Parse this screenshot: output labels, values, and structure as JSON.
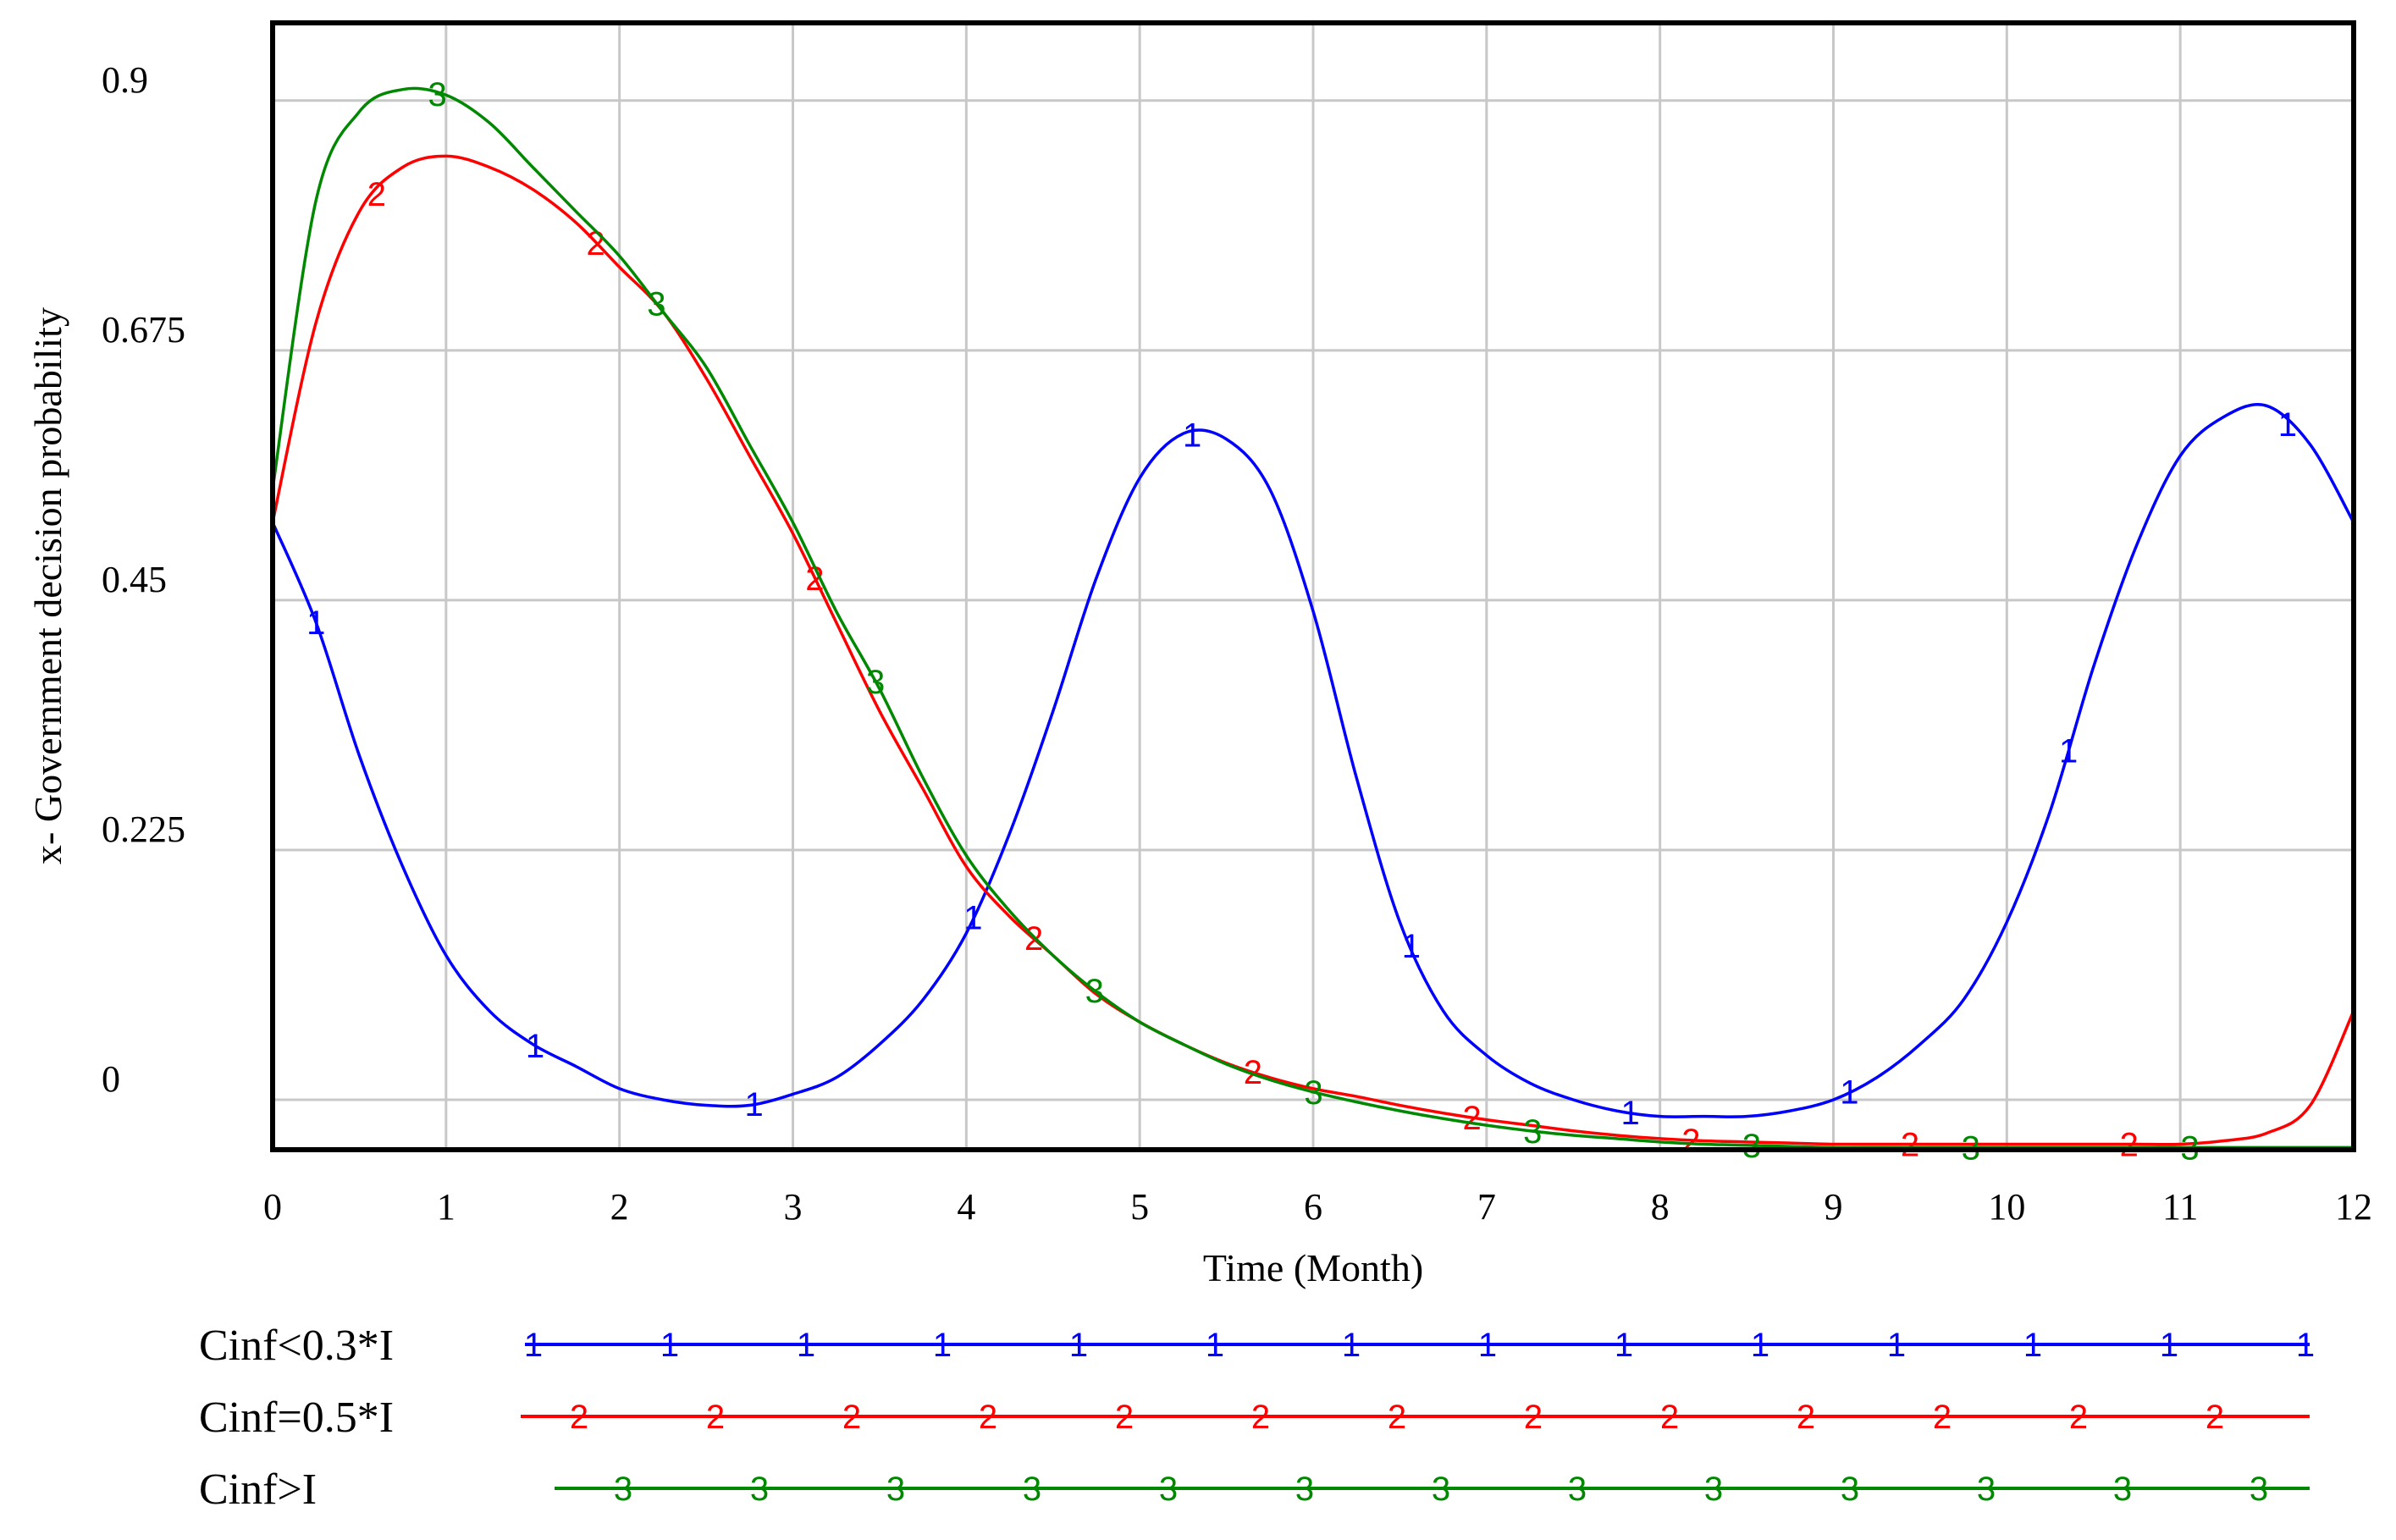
{
  "chart_data": {
    "type": "line",
    "title": "",
    "xlabel": "Time (Month)",
    "ylabel": "x-  Government  decision  probability",
    "xlim": [
      0,
      12
    ],
    "ylim": [
      -0.045,
      0.97
    ],
    "x_ticks": [
      "0",
      "1",
      "2",
      "3",
      "4",
      "5",
      "6",
      "7",
      "8",
      "9",
      "10",
      "11",
      "12"
    ],
    "y_ticks": [
      "0",
      "0.225",
      "0.45",
      "0.675",
      "0.9"
    ],
    "grid": true,
    "legend_position": "bottom",
    "x": [
      0,
      0.25,
      0.5,
      0.75,
      1,
      1.25,
      1.5,
      1.75,
      2,
      2.25,
      2.5,
      2.75,
      3,
      3.25,
      3.5,
      3.75,
      4,
      4.25,
      4.5,
      4.75,
      5,
      5.25,
      5.5,
      5.75,
      6,
      6.25,
      6.5,
      6.75,
      7,
      7.25,
      7.5,
      7.75,
      8,
      8.25,
      8.5,
      8.75,
      9,
      9.25,
      9.5,
      9.75,
      10,
      10.25,
      10.5,
      10.75,
      11,
      11.25,
      11.5,
      11.75,
      12
    ],
    "series": [
      {
        "name": "Cinf<0.3*I",
        "color": "#0000ff",
        "marker": "1",
        "values": [
          0.52,
          0.43,
          0.31,
          0.21,
          0.13,
          0.08,
          0.05,
          0.03,
          0.01,
          0.0,
          -0.005,
          -0.005,
          0.005,
          0.02,
          0.05,
          0.09,
          0.15,
          0.24,
          0.35,
          0.47,
          0.56,
          0.6,
          0.595,
          0.55,
          0.44,
          0.29,
          0.16,
          0.08,
          0.04,
          0.015,
          0.0,
          -0.01,
          -0.015,
          -0.015,
          -0.015,
          -0.01,
          0.0,
          0.02,
          0.05,
          0.09,
          0.16,
          0.26,
          0.39,
          0.5,
          0.58,
          0.615,
          0.625,
          0.59,
          0.52
        ]
      },
      {
        "name": "Cinf=0.5*I",
        "color": "#ff0000",
        "marker": "2",
        "values": [
          0.52,
          0.7,
          0.8,
          0.84,
          0.85,
          0.84,
          0.82,
          0.79,
          0.75,
          0.71,
          0.65,
          0.58,
          0.51,
          0.43,
          0.35,
          0.28,
          0.21,
          0.165,
          0.13,
          0.095,
          0.07,
          0.05,
          0.033,
          0.02,
          0.01,
          0.003,
          -0.005,
          -0.012,
          -0.018,
          -0.023,
          -0.028,
          -0.032,
          -0.035,
          -0.037,
          -0.038,
          -0.039,
          -0.04,
          -0.04,
          -0.04,
          -0.04,
          -0.04,
          -0.04,
          -0.04,
          -0.04,
          -0.04,
          -0.037,
          -0.03,
          -0.005,
          0.08
        ]
      },
      {
        "name": "Cinf>I",
        "color": "#008800",
        "marker": "3",
        "values": [
          0.55,
          0.81,
          0.89,
          0.91,
          0.905,
          0.88,
          0.84,
          0.8,
          0.76,
          0.71,
          0.66,
          0.59,
          0.52,
          0.44,
          0.37,
          0.29,
          0.22,
          0.17,
          0.13,
          0.097,
          0.07,
          0.05,
          0.032,
          0.018,
          0.007,
          -0.002,
          -0.01,
          -0.017,
          -0.023,
          -0.028,
          -0.032,
          -0.035,
          -0.038,
          -0.04,
          -0.041,
          -0.042,
          -0.043,
          -0.043,
          -0.043,
          -0.043,
          -0.043,
          -0.043,
          -0.043,
          -0.043,
          -0.043,
          -0.043,
          -0.043,
          -0.043,
          -0.043
        ]
      }
    ]
  }
}
